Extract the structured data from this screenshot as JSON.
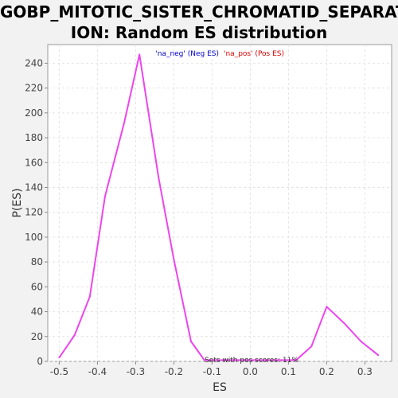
{
  "title_lines": [
    "GOBP_MITOTIC_SISTER_CHROMATID_SEPARAT",
    "ION: Random ES distribution"
  ],
  "legend": {
    "neg_label": "'na_neg' (Neg ES)",
    "pos_label": "'na_pos' (Pos ES)",
    "neg_color": "#0000cc",
    "pos_color": "#dd0000"
  },
  "annotation": "Sets with pos scores: 11%",
  "chart_data": {
    "type": "line",
    "title": "GOBP_MITOTIC_SISTER_CHROMATID_SEPARATION: Random ES distribution",
    "xlabel": "ES",
    "ylabel": "P(ES)",
    "xlim": [
      -0.53,
      0.37
    ],
    "ylim": [
      0,
      255
    ],
    "x_ticks": [
      -0.5,
      -0.4,
      -0.3,
      -0.2,
      -0.1,
      0.0,
      0.1,
      0.2,
      0.3
    ],
    "x_tick_labels": [
      "-0.5",
      "-0.4",
      "-0.3",
      "-0.2",
      "-0.1",
      "0.0",
      "0.1",
      "0.2",
      "0.3"
    ],
    "y_ticks": [
      0,
      20,
      40,
      60,
      80,
      100,
      120,
      140,
      160,
      180,
      200,
      220,
      240
    ],
    "grid": true,
    "series": [
      {
        "color": "#ee44ee",
        "x": [
          -0.5,
          -0.46,
          -0.42,
          -0.38,
          -0.33,
          -0.29,
          -0.24,
          -0.2,
          -0.155,
          -0.12,
          0.12,
          0.16,
          0.2,
          0.245,
          0.29,
          0.335
        ],
        "values": [
          3,
          21,
          52,
          133,
          192,
          247,
          148,
          82,
          16,
          1,
          1,
          12,
          44,
          31,
          16,
          5
        ]
      }
    ]
  }
}
